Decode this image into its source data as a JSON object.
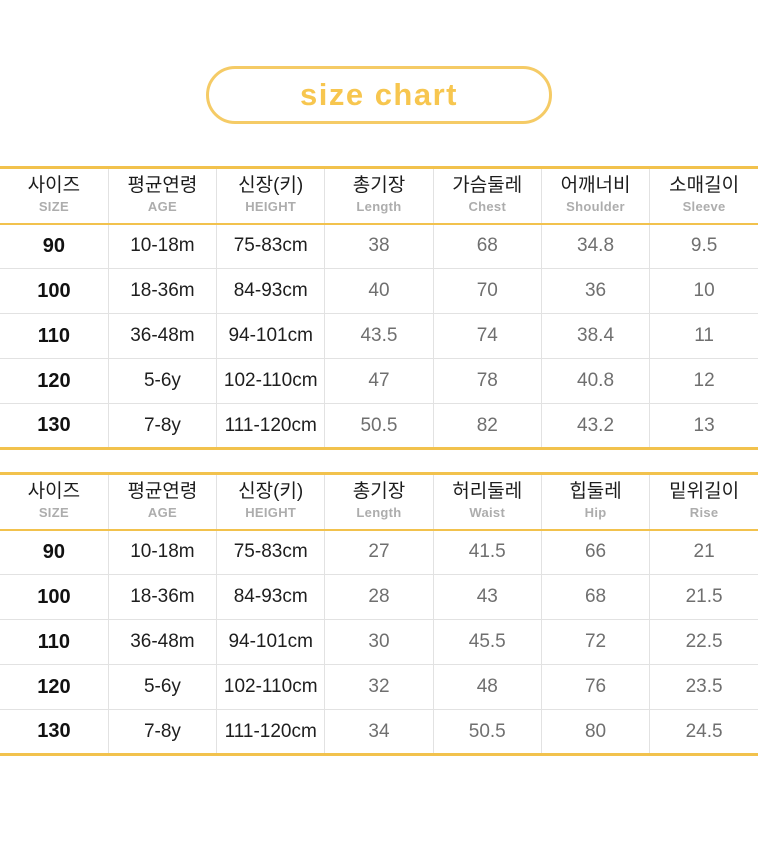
{
  "page": {
    "title_label": "size chart"
  },
  "colors": {
    "accent_line_yellow": "#F2C24D",
    "pill_border_yellow": "#F5CB66",
    "title_text_yellow": "#F7C64F",
    "divider_gray": "#E2E2E2",
    "korean_header_text": "#1C1C1C",
    "english_header_text": "#ADADAD",
    "size_column_text": "#111111",
    "dark_column_text": "#1E1E1E",
    "measurement_text": "#6F6F6F"
  },
  "chart_data": [
    {
      "type": "table",
      "name": "top-garment-size-table",
      "columns": [
        {
          "ko": "사이즈",
          "en": "SIZE"
        },
        {
          "ko": "평균연령",
          "en": "AGE"
        },
        {
          "ko": "신장(키)",
          "en": "HEIGHT"
        },
        {
          "ko": "총기장",
          "en": "Length"
        },
        {
          "ko": "가슴둘레",
          "en": "Chest"
        },
        {
          "ko": "어깨너비",
          "en": "Shoulder"
        },
        {
          "ko": "소매길이",
          "en": "Sleeve"
        }
      ],
      "rows": [
        [
          "90",
          "10-18m",
          "75-83cm",
          "38",
          "68",
          "34.8",
          "9.5"
        ],
        [
          "100",
          "18-36m",
          "84-93cm",
          "40",
          "70",
          "36",
          "10"
        ],
        [
          "110",
          "36-48m",
          "94-101cm",
          "43.5",
          "74",
          "38.4",
          "11"
        ],
        [
          "120",
          "5-6y",
          "102-110cm",
          "47",
          "78",
          "40.8",
          "12"
        ],
        [
          "130",
          "7-8y",
          "111-120cm",
          "50.5",
          "82",
          "43.2",
          "13"
        ]
      ]
    },
    {
      "type": "table",
      "name": "bottom-garment-size-table",
      "columns": [
        {
          "ko": "사이즈",
          "en": "SIZE"
        },
        {
          "ko": "평균연령",
          "en": "AGE"
        },
        {
          "ko": "신장(키)",
          "en": "HEIGHT"
        },
        {
          "ko": "총기장",
          "en": "Length"
        },
        {
          "ko": "허리둘레",
          "en": "Waist"
        },
        {
          "ko": "힙둘레",
          "en": "Hip"
        },
        {
          "ko": "밑위길이",
          "en": "Rise"
        }
      ],
      "rows": [
        [
          "90",
          "10-18m",
          "75-83cm",
          "27",
          "41.5",
          "66",
          "21"
        ],
        [
          "100",
          "18-36m",
          "84-93cm",
          "28",
          "43",
          "68",
          "21.5"
        ],
        [
          "110",
          "36-48m",
          "94-101cm",
          "30",
          "45.5",
          "72",
          "22.5"
        ],
        [
          "120",
          "5-6y",
          "102-110cm",
          "32",
          "48",
          "76",
          "23.5"
        ],
        [
          "130",
          "7-8y",
          "111-120cm",
          "34",
          "50.5",
          "80",
          "24.5"
        ]
      ]
    }
  ]
}
